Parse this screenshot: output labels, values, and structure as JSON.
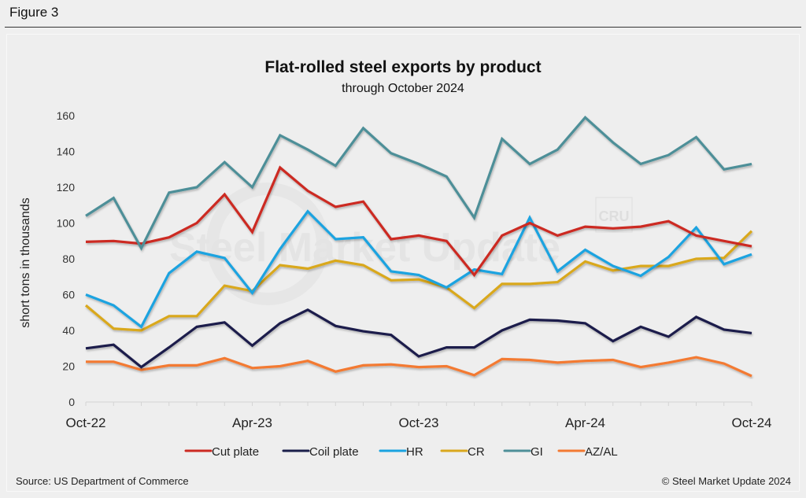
{
  "figure_label": "Figure 3",
  "footer": {
    "source": "Source: US Department of Commerce",
    "copyright": "© Steel Market Update 2024"
  },
  "watermark": {
    "text": "Steel Market Update",
    "badge": "CRU"
  },
  "chart_data": {
    "type": "line",
    "title": "Flat-rolled steel exports by product",
    "subtitle": "through October 2024",
    "xlabel": "",
    "ylabel": "short tons in thousands",
    "ylim": [
      0,
      160
    ],
    "yticks": [
      0,
      20,
      40,
      60,
      80,
      100,
      120,
      140,
      160
    ],
    "grid": false,
    "legend_position": "bottom",
    "x": [
      "Oct-22",
      "Nov-22",
      "Dec-22",
      "Jan-23",
      "Feb-23",
      "Mar-23",
      "Apr-23",
      "May-23",
      "Jun-23",
      "Jul-23",
      "Aug-23",
      "Sep-23",
      "Oct-23",
      "Nov-23",
      "Dec-23",
      "Jan-24",
      "Feb-24",
      "Mar-24",
      "Apr-24",
      "May-24",
      "Jun-24",
      "Jul-24",
      "Aug-24",
      "Sep-24",
      "Oct-24"
    ],
    "xtick_labels": [
      {
        "index": 0,
        "label": "Oct-22"
      },
      {
        "index": 6,
        "label": "Apr-23"
      },
      {
        "index": 12,
        "label": "Oct-23"
      },
      {
        "index": 18,
        "label": "Apr-24"
      },
      {
        "index": 24,
        "label": "Oct-24"
      }
    ],
    "series": [
      {
        "name": "Cut plate",
        "color": "#cc2a22",
        "values": [
          89.5,
          90,
          88.5,
          92,
          100,
          116,
          95,
          131,
          118,
          109,
          112,
          91,
          93,
          90,
          71,
          93,
          100,
          93,
          98,
          97,
          98,
          101,
          93,
          90,
          87
        ]
      },
      {
        "name": "Coil plate",
        "color": "#1b1f4b",
        "values": [
          30,
          32,
          19.5,
          30.5,
          42,
          44.5,
          31.5,
          44,
          51.5,
          42.5,
          39.5,
          37.5,
          25.5,
          30.5,
          30.5,
          40,
          46,
          45.5,
          44,
          34,
          42,
          36.5,
          47.5,
          40.5,
          38.5
        ]
      },
      {
        "name": "HR",
        "color": "#1aa3e0",
        "values": [
          60,
          54,
          42,
          72,
          84,
          80.5,
          61,
          85.5,
          106.5,
          91,
          92,
          73,
          71,
          64,
          74,
          71.5,
          103,
          73,
          85,
          76,
          70.5,
          81,
          97.5,
          77,
          82.5
        ]
      },
      {
        "name": "CR",
        "color": "#d9a81e",
        "values": [
          54,
          41,
          40,
          48,
          48,
          65,
          62,
          76.5,
          74.5,
          79,
          76.5,
          68,
          68.5,
          64,
          52.5,
          66,
          66,
          67,
          78.5,
          73.5,
          76,
          76,
          80,
          80.5,
          95.5
        ]
      },
      {
        "name": "GI",
        "color": "#4e8f98",
        "values": [
          104,
          114,
          86,
          117,
          120,
          134,
          120,
          149,
          141,
          132,
          153,
          139,
          133,
          126,
          103,
          147,
          133,
          141,
          159,
          145,
          133,
          138,
          148,
          130,
          133
        ]
      },
      {
        "name": "AZ/AL",
        "color": "#f37a32",
        "values": [
          22.5,
          22.5,
          18,
          20.5,
          20.5,
          24.5,
          19,
          20,
          23,
          17,
          20.5,
          21,
          19.5,
          20,
          15,
          24,
          23.5,
          22,
          23,
          23.5,
          19.5,
          22,
          25,
          21.5,
          14.5
        ]
      }
    ]
  }
}
